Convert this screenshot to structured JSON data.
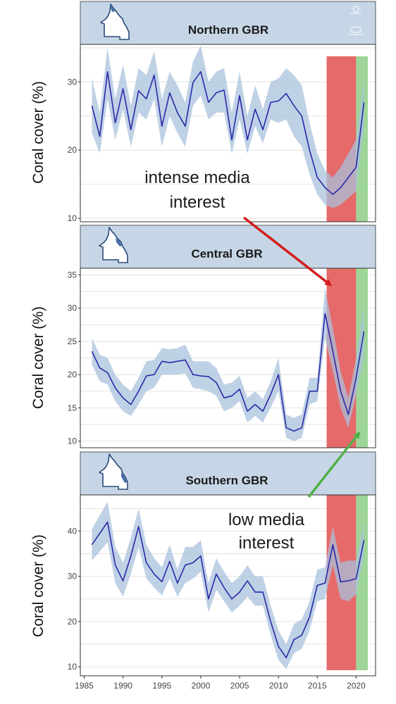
{
  "colors": {
    "header_bg": "#c6d6e6",
    "line": "#2a2aa8",
    "ribbon": "#a9c1dc",
    "grid": "#e3e3e3",
    "red_band": "#e25555",
    "green_band": "#8fd08a",
    "red_arrow": "#d41c1c",
    "green_arrow": "#52b04a",
    "map_fill": "#ffffff",
    "map_highlight": "#4a6fa8"
  },
  "icons": {
    "map": "queensland-map-icon",
    "emblem": "government-emblem-icon",
    "logo": "aims-logo-icon"
  },
  "annotations": {
    "intense": {
      "lines": [
        "intense media",
        "interest"
      ]
    },
    "low": {
      "lines": [
        "low media",
        "interest"
      ]
    }
  },
  "highlight_bands": [
    {
      "name": "intense media interest",
      "x_range": [
        2016.2,
        2020
      ],
      "color": "#e25555"
    },
    {
      "name": "low media interest",
      "x_range": [
        2020,
        2021.5
      ],
      "color": "#8fd08a"
    }
  ],
  "chart_data": [
    {
      "type": "line",
      "title": "Northern GBR",
      "ylabel": "Coral cover (%)",
      "xlim": [
        1984.5,
        2022.5
      ],
      "ylim": [
        9.5,
        35.5
      ],
      "yticks": [
        10,
        20,
        30
      ],
      "xticks": [],
      "grid": true,
      "x": [
        1986,
        1987,
        1988,
        1989,
        1990,
        1991,
        1992,
        1993,
        1994,
        1995,
        1996,
        1997,
        1998,
        1999,
        2000,
        2001,
        2002,
        2003,
        2004,
        2005,
        2006,
        2007,
        2008,
        2009,
        2010,
        2011,
        2012,
        2013,
        2014,
        2015,
        2016,
        2017,
        2018,
        2019,
        2020,
        2021
      ],
      "series": [
        {
          "values": [
            26.5,
            22,
            31.5,
            24,
            29,
            23,
            28.7,
            27.5,
            31,
            23.5,
            28.4,
            25.5,
            23.5,
            29.9,
            31.5,
            27,
            28.4,
            28.8,
            21.5,
            28,
            21.5,
            26,
            23,
            27,
            27.2,
            28.3,
            26.5,
            25,
            20,
            16,
            14.5,
            13.5,
            14.5,
            16,
            17.5,
            27
          ],
          "lower": [
            22.5,
            19.5,
            27.5,
            21.5,
            26,
            20.5,
            25.5,
            24.5,
            27.5,
            20.5,
            25,
            22.5,
            20.5,
            26.5,
            28,
            24.5,
            25.5,
            25.5,
            19.5,
            24.5,
            19.5,
            23.5,
            21,
            24.5,
            24,
            24.5,
            22,
            20.5,
            16.5,
            13.5,
            12,
            11.5,
            12,
            13,
            14,
            23.5
          ],
          "upper": [
            30.5,
            25.5,
            35,
            27.5,
            32.5,
            26.5,
            32,
            31,
            34.5,
            27.5,
            31.5,
            29.5,
            27,
            33,
            35.3,
            30,
            31.5,
            32,
            25.5,
            31.5,
            25,
            29.5,
            26,
            30,
            30.5,
            32,
            31,
            29.5,
            24,
            19.5,
            17,
            16,
            17.5,
            19.5,
            21.5,
            30.5
          ]
        }
      ]
    },
    {
      "type": "line",
      "title": "Central GBR",
      "ylabel": "Coral cover (%)",
      "xlim": [
        1984.5,
        2022.5
      ],
      "ylim": [
        9,
        36
      ],
      "yticks": [
        10,
        15,
        20,
        25,
        30,
        35
      ],
      "xticks": [],
      "grid": true,
      "x": [
        1986,
        1987,
        1988,
        1989,
        1990,
        1991,
        1992,
        1993,
        1994,
        1995,
        1996,
        1997,
        1998,
        1999,
        2000,
        2001,
        2002,
        2003,
        2004,
        2005,
        2006,
        2007,
        2008,
        2009,
        2010,
        2011,
        2012,
        2013,
        2014,
        2015,
        2016,
        2017,
        2018,
        2019,
        2020,
        2021
      ],
      "series": [
        {
          "values": [
            23.5,
            21,
            20.3,
            18,
            16.5,
            15.5,
            17.5,
            19.8,
            20,
            22,
            21.8,
            22,
            22.2,
            20,
            19.8,
            19.7,
            18.8,
            16.5,
            16.8,
            17.8,
            14.5,
            15.5,
            14.5,
            17,
            20,
            12,
            11.5,
            12,
            17.5,
            17.5,
            29.2,
            23.5,
            17.5,
            14,
            19.5,
            26.5
          ],
          "lower": [
            21.5,
            19,
            18.5,
            16,
            14.5,
            13.8,
            15.5,
            17.5,
            18,
            20,
            20,
            20,
            20.2,
            18,
            17.8,
            17.5,
            16.8,
            14.5,
            15,
            16,
            12.8,
            13.8,
            12.8,
            15,
            17.5,
            10.5,
            10,
            10.5,
            15.5,
            16,
            25.5,
            20.5,
            15,
            12,
            17,
            22.5
          ],
          "upper": [
            25.5,
            23,
            22.5,
            20,
            18.5,
            17.5,
            19.5,
            22,
            22.2,
            24,
            23.8,
            24,
            24.5,
            22,
            22,
            22,
            21,
            18.5,
            18.8,
            19.8,
            16.5,
            17.5,
            16.3,
            19,
            22.5,
            14,
            13.5,
            14,
            19.5,
            19.5,
            33,
            27,
            20.5,
            16.5,
            22.5,
            30.5
          ]
        }
      ]
    },
    {
      "type": "line",
      "title": "Southern GBR",
      "ylabel": "Coral cover (%)",
      "xlim": [
        1984.5,
        2022.5
      ],
      "ylim": [
        8,
        48
      ],
      "yticks": [
        10,
        20,
        30,
        40
      ],
      "xticks": [
        1985,
        1990,
        1995,
        2000,
        2005,
        2010,
        2015,
        2020
      ],
      "grid": true,
      "x": [
        1986,
        1987,
        1988,
        1989,
        1990,
        1991,
        1992,
        1993,
        1994,
        1995,
        1996,
        1997,
        1998,
        1999,
        2000,
        2001,
        2002,
        2003,
        2004,
        2005,
        2006,
        2007,
        2008,
        2009,
        2010,
        2011,
        2012,
        2013,
        2014,
        2015,
        2016,
        2017,
        2018,
        2019,
        2020,
        2021
      ],
      "series": [
        {
          "values": [
            37,
            39.5,
            42,
            32.5,
            29,
            34.5,
            41,
            33,
            30.5,
            28.8,
            33.3,
            28.5,
            32.5,
            33,
            34.5,
            25,
            30.5,
            27.5,
            25,
            26.5,
            29,
            26.5,
            26.5,
            20,
            14.5,
            12,
            16,
            17,
            21,
            28,
            28.5,
            37,
            28.8,
            29,
            29.5,
            38
          ],
          "lower": [
            33.5,
            35.5,
            37.5,
            28.5,
            25.5,
            30.5,
            36.5,
            29.5,
            27.5,
            25.8,
            29.5,
            25.5,
            28.5,
            29.5,
            31,
            22,
            27,
            24.5,
            22,
            23.5,
            25.5,
            23.5,
            23.5,
            17,
            11.5,
            9.5,
            13,
            14,
            18,
            24.5,
            25,
            32.5,
            25,
            24.5,
            26,
            34.5
          ],
          "upper": [
            40.5,
            43.5,
            46.5,
            36.5,
            33,
            38.5,
            45,
            37,
            34,
            32,
            37,
            31.5,
            36.5,
            36.5,
            38,
            28.5,
            34,
            31,
            28.5,
            30,
            32.5,
            30,
            30,
            23.5,
            18,
            15,
            19.5,
            20.5,
            24.5,
            31.5,
            32,
            41,
            33,
            33.5,
            33.5,
            42
          ]
        }
      ]
    }
  ]
}
